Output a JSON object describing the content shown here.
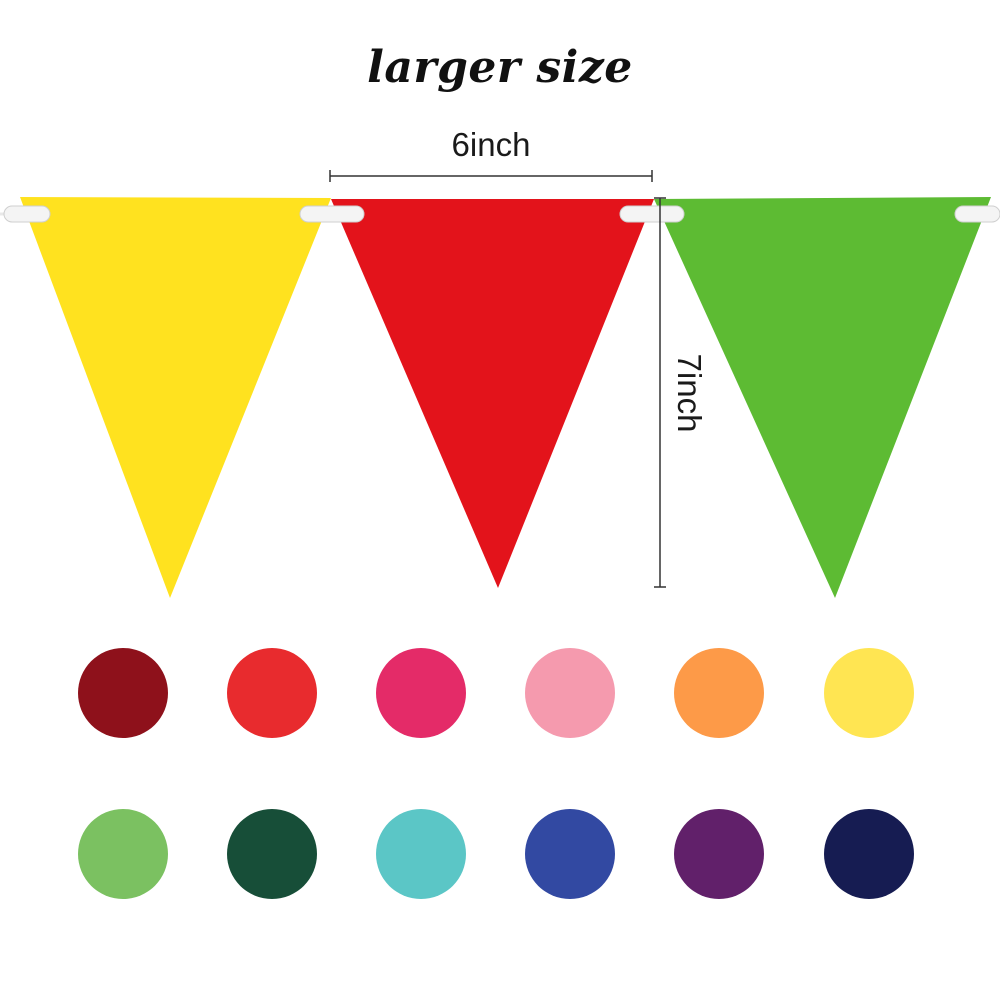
{
  "title": "larger size",
  "dimensions": {
    "width_label": "6inch",
    "height_label": "7inch"
  },
  "pennants": [
    {
      "name": "yellow",
      "color": "#FFE21F"
    },
    {
      "name": "red",
      "color": "#E3131B"
    },
    {
      "name": "green",
      "color": "#5DBB33"
    }
  ],
  "swatches": [
    {
      "name": "maroon",
      "color": "#8E111B"
    },
    {
      "name": "red",
      "color": "#E82B2E"
    },
    {
      "name": "pink-red",
      "color": "#E42B68"
    },
    {
      "name": "light-pink",
      "color": "#F59AAE"
    },
    {
      "name": "orange",
      "color": "#FD9A48"
    },
    {
      "name": "light-yellow",
      "color": "#FFE552"
    },
    {
      "name": "light-green",
      "color": "#7BC161"
    },
    {
      "name": "dark-green",
      "color": "#174E38"
    },
    {
      "name": "turquoise",
      "color": "#5BC6C6"
    },
    {
      "name": "royal-blue",
      "color": "#3249A2"
    },
    {
      "name": "purple",
      "color": "#61206A"
    },
    {
      "name": "navy",
      "color": "#161C52"
    }
  ]
}
